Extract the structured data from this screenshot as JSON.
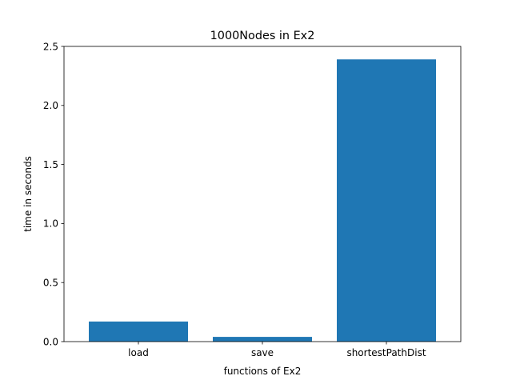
{
  "chart_data": {
    "type": "bar",
    "title": "1000Nodes in Ex2",
    "xlabel": "functions of Ex2",
    "ylabel": "time in seconds",
    "categories": [
      "load",
      "save",
      "shortestPathDist"
    ],
    "values": [
      0.17,
      0.04,
      2.39
    ],
    "ylim": [
      0,
      2.5
    ],
    "yticks": [
      "0.0",
      "0.5",
      "1.0",
      "1.5",
      "2.0",
      "2.5"
    ],
    "grid": false,
    "bar_color": "#1f77b4"
  }
}
